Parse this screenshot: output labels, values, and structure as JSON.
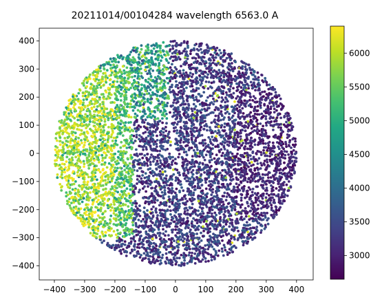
{
  "chart_data": {
    "type": "scatter",
    "title": "20211014/00104284 wavelength 6563.0 A",
    "xlabel": "",
    "ylabel": "",
    "xlim": [
      -450,
      455
    ],
    "ylim": [
      -450,
      445
    ],
    "x_ticks": [
      -400,
      -300,
      -200,
      -100,
      0,
      100,
      200,
      300,
      400
    ],
    "y_ticks": [
      400,
      300,
      200,
      100,
      0,
      -100,
      -200,
      -300,
      -400
    ],
    "colorbar": {
      "label": "",
      "colormap": "viridis",
      "range": [
        2650,
        6400
      ],
      "ticks": [
        6000,
        5500,
        5000,
        4500,
        4000,
        3500,
        3000
      ]
    },
    "scatter_points": {
      "disc_radius": 400,
      "point_count": 6500,
      "marker": "filled circle",
      "regions": [
        {
          "x_range": [
            -400,
            -150
          ],
          "y_range": [
            -300,
            300
          ],
          "typical_value": 5800
        },
        {
          "x_range": [
            -250,
            -50
          ],
          "y_range": [
            150,
            350
          ],
          "typical_value": 4800
        },
        {
          "x_range": [
            -150,
            400
          ],
          "y_range": [
            -400,
            400
          ],
          "typical_value": 3300
        },
        {
          "x_range": [
            200,
            400
          ],
          "y_range": [
            -200,
            200
          ],
          "typical_value": 2900
        }
      ]
    },
    "grid": false,
    "legend": "none"
  }
}
